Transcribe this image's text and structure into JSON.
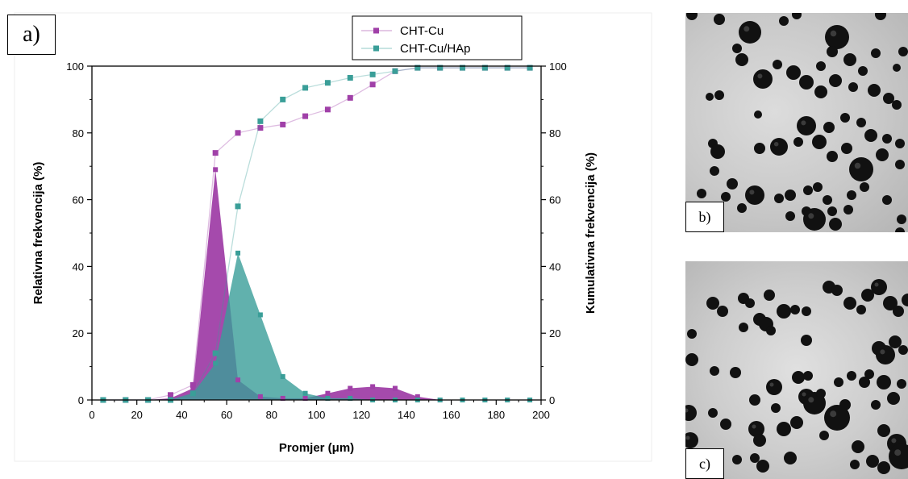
{
  "panel_labels": {
    "a": "a)",
    "b": "b)",
    "c": "c)"
  },
  "chart_data": {
    "type": "line",
    "xlabel": "Promjer (μm)",
    "ylabel": "Relativna frekvencija (%)",
    "ylabel_right": "Kumulativna frekvencija (%)",
    "xlim": [
      0,
      200
    ],
    "ylim": [
      0,
      100
    ],
    "ylim_right": [
      0,
      100
    ],
    "x_ticks": [
      0,
      20,
      40,
      60,
      80,
      100,
      120,
      140,
      160,
      180,
      200
    ],
    "y_ticks": [
      0,
      20,
      40,
      60,
      80,
      100
    ],
    "y_ticks_right": [
      0,
      20,
      40,
      60,
      80,
      100
    ],
    "grid": false,
    "legend_position": "top-right",
    "x": [
      5,
      15,
      25,
      35,
      45,
      55,
      65,
      75,
      85,
      95,
      105,
      115,
      125,
      135,
      145,
      155,
      165,
      175,
      185,
      195
    ],
    "series": [
      {
        "name": "CHT-Cu",
        "color": "#a040a8",
        "relative": [
          0,
          0,
          0,
          0.5,
          3.5,
          69,
          6,
          1,
          0.5,
          0.5,
          2,
          3.5,
          4,
          3.5,
          1,
          0,
          0,
          0,
          0,
          0
        ],
        "cumulative": [
          0,
          0,
          0,
          1.5,
          4.5,
          74,
          80,
          81.5,
          82.5,
          85,
          87,
          90.5,
          94.5,
          98.5,
          99.5,
          99.5,
          99.5,
          99.5,
          99.5,
          99.5
        ]
      },
      {
        "name": "CHT-Cu/HAp",
        "color": "#3a9e98",
        "relative": [
          0,
          0,
          0,
          0,
          2,
          11,
          44,
          25.5,
          7,
          2,
          0.5,
          0.5,
          0,
          0,
          0,
          0,
          0,
          0,
          0,
          0
        ],
        "cumulative": [
          0,
          0,
          0,
          0,
          2,
          14,
          58,
          83.5,
          90,
          93.5,
          95,
          96.5,
          97.5,
          98.5,
          99.5,
          99.5,
          99.5,
          99.5,
          99.5,
          99.5
        ]
      }
    ]
  }
}
